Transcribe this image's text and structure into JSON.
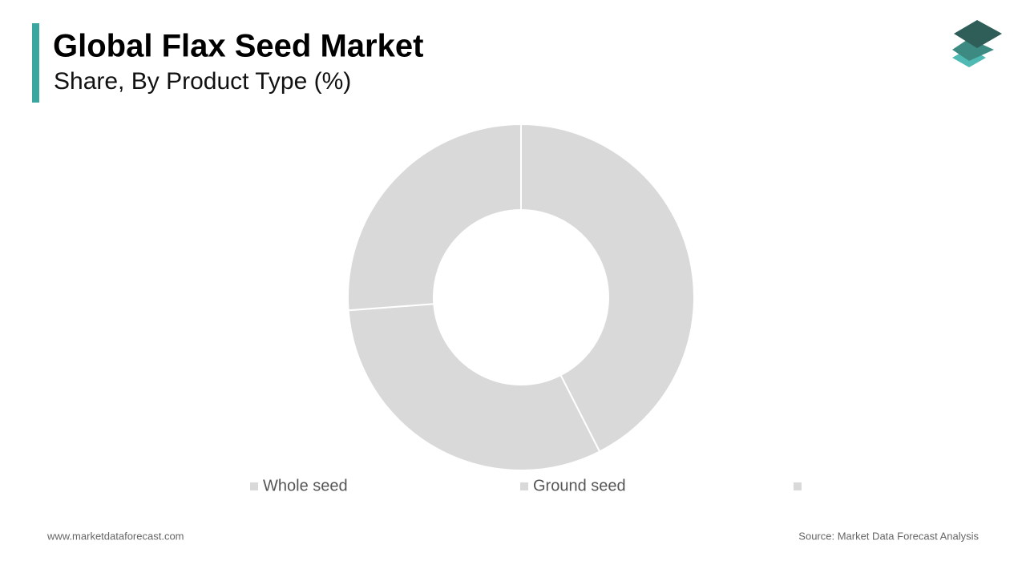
{
  "header": {
    "title": "Global Flax Seed Market",
    "subtitle": "Share, By Product Type (%)"
  },
  "chart_data": {
    "type": "donut",
    "categories": [
      "Whole seed",
      "Ground seed",
      null
    ],
    "values": [
      42.5,
      31.3,
      26.2
    ],
    "colors": [
      "#d9d9d9",
      "#d9d9d9",
      "#d9d9d9"
    ]
  },
  "footer": {
    "website": "www.marketdataforecast.com",
    "source": "Source: Market Data Forecast Analysis"
  }
}
